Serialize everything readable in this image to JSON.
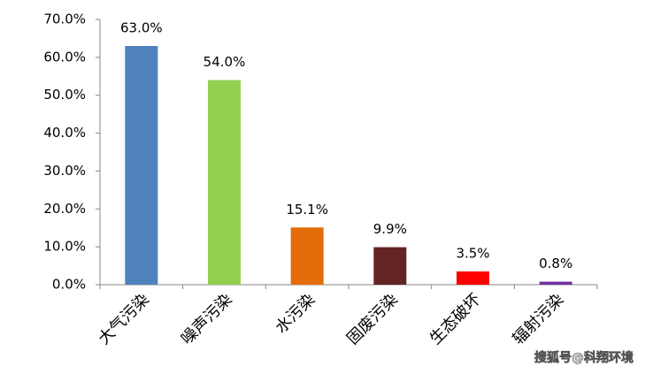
{
  "chart_data": {
    "type": "bar",
    "categories": [
      "大气污染",
      "噪声污染",
      "水污染",
      "固废污染",
      "生态破坏",
      "辐射污染"
    ],
    "values": [
      63.0,
      54.0,
      15.1,
      9.9,
      3.5,
      0.8
    ],
    "value_labels": [
      "63.0%",
      "54.0%",
      "15.1%",
      "9.9%",
      "3.5%",
      "0.8%"
    ],
    "colors": [
      "#4f81bd",
      "#92d050",
      "#e36c09",
      "#632523",
      "#ff0000",
      "#7030a0"
    ],
    "ylim": [
      0,
      70
    ],
    "yticks": [
      {
        "value": 0,
        "label": "0.0%"
      },
      {
        "value": 10,
        "label": "10.0%"
      },
      {
        "value": 20,
        "label": "20.0%"
      },
      {
        "value": 30,
        "label": "30.0%"
      },
      {
        "value": 40,
        "label": "40.0%"
      },
      {
        "value": 50,
        "label": "50.0%"
      },
      {
        "value": 60,
        "label": "60.0%"
      },
      {
        "value": 70,
        "label": "70.0%"
      }
    ],
    "grid": false,
    "watermark": "搜狐号@科翔环境"
  }
}
